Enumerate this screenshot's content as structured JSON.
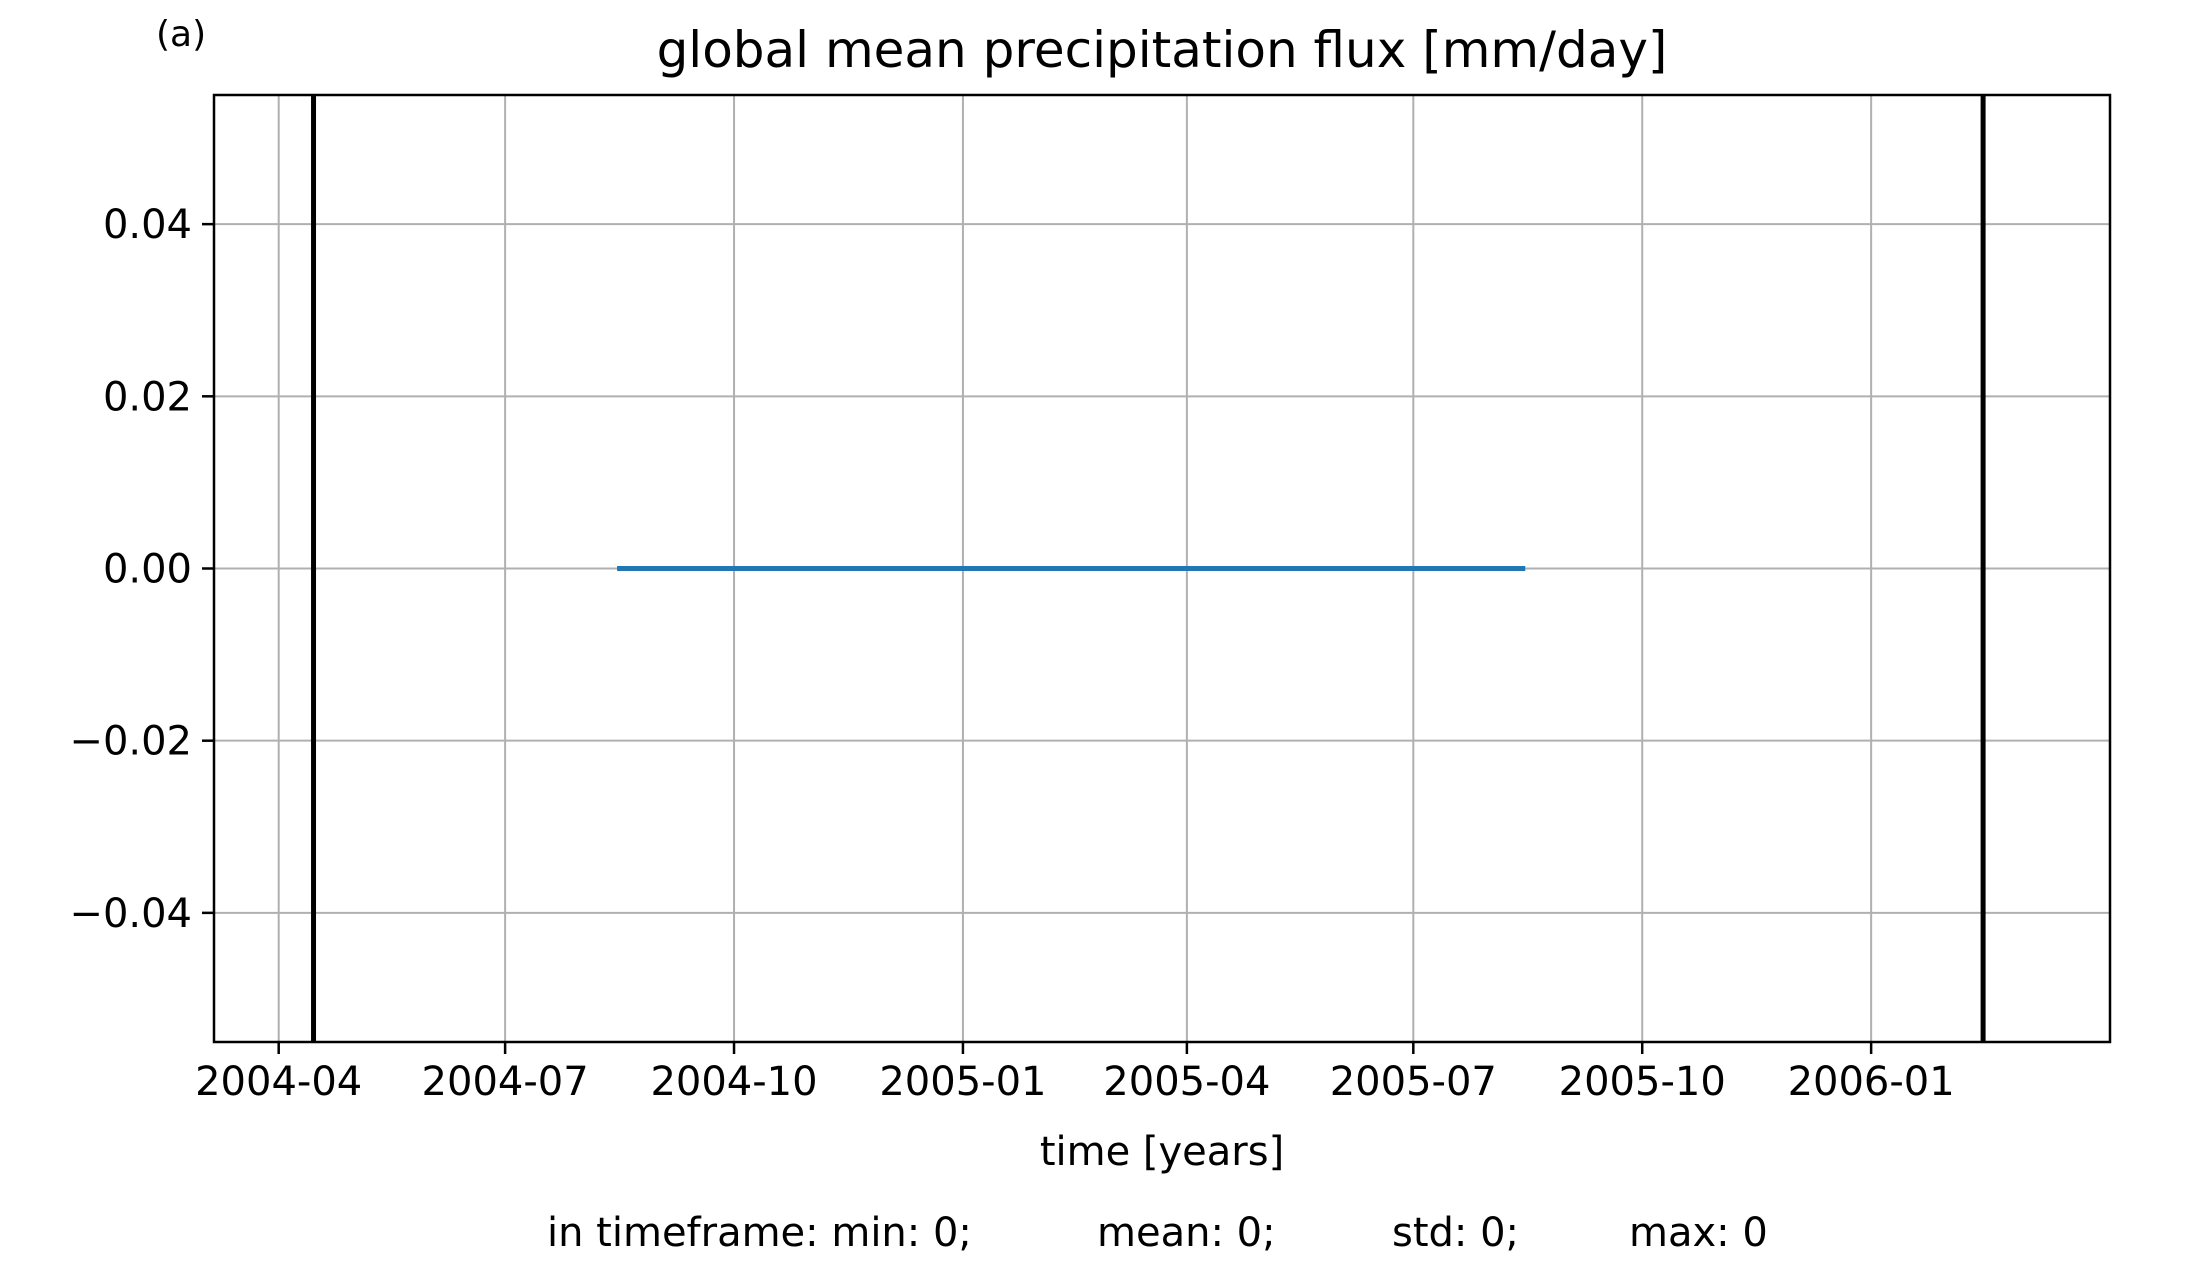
{
  "chart_data": {
    "type": "line",
    "panel_label": "(a)",
    "title": "global mean precipitation flux [mm/day]",
    "xlabel": "time [years]",
    "ylabel": "",
    "x_axis_type": "date",
    "xlim": [
      "2004-03-06",
      "2006-04-07"
    ],
    "ylim": [
      -0.055,
      0.055
    ],
    "grid": true,
    "x_ticks": [
      "2004-04-01",
      "2004-07-01",
      "2004-10-01",
      "2005-01-01",
      "2005-04-01",
      "2005-07-01",
      "2005-10-01",
      "2006-01-01"
    ],
    "x_tick_labels": [
      "2004-04",
      "2004-07",
      "2004-10",
      "2005-01",
      "2005-04",
      "2005-07",
      "2005-10",
      "2006-01"
    ],
    "y_ticks": [
      0.04,
      0.02,
      0.0,
      -0.02,
      -0.04
    ],
    "y_tick_labels": [
      "0.04",
      "0.02",
      "0.00",
      "−0.02",
      "−0.04"
    ],
    "series": [
      {
        "color": "#1f77b4",
        "x": [
          "2004-08-15",
          "2005-08-15"
        ],
        "y": [
          0,
          0
        ]
      }
    ],
    "timeframe_markers": {
      "color": "#000000",
      "x": [
        "2004-04-15",
        "2006-02-15"
      ]
    },
    "stats": {
      "min": "in timeframe: min: 0;",
      "mean": "mean: 0;",
      "std": "std: 0;",
      "max": "max: 0"
    }
  }
}
